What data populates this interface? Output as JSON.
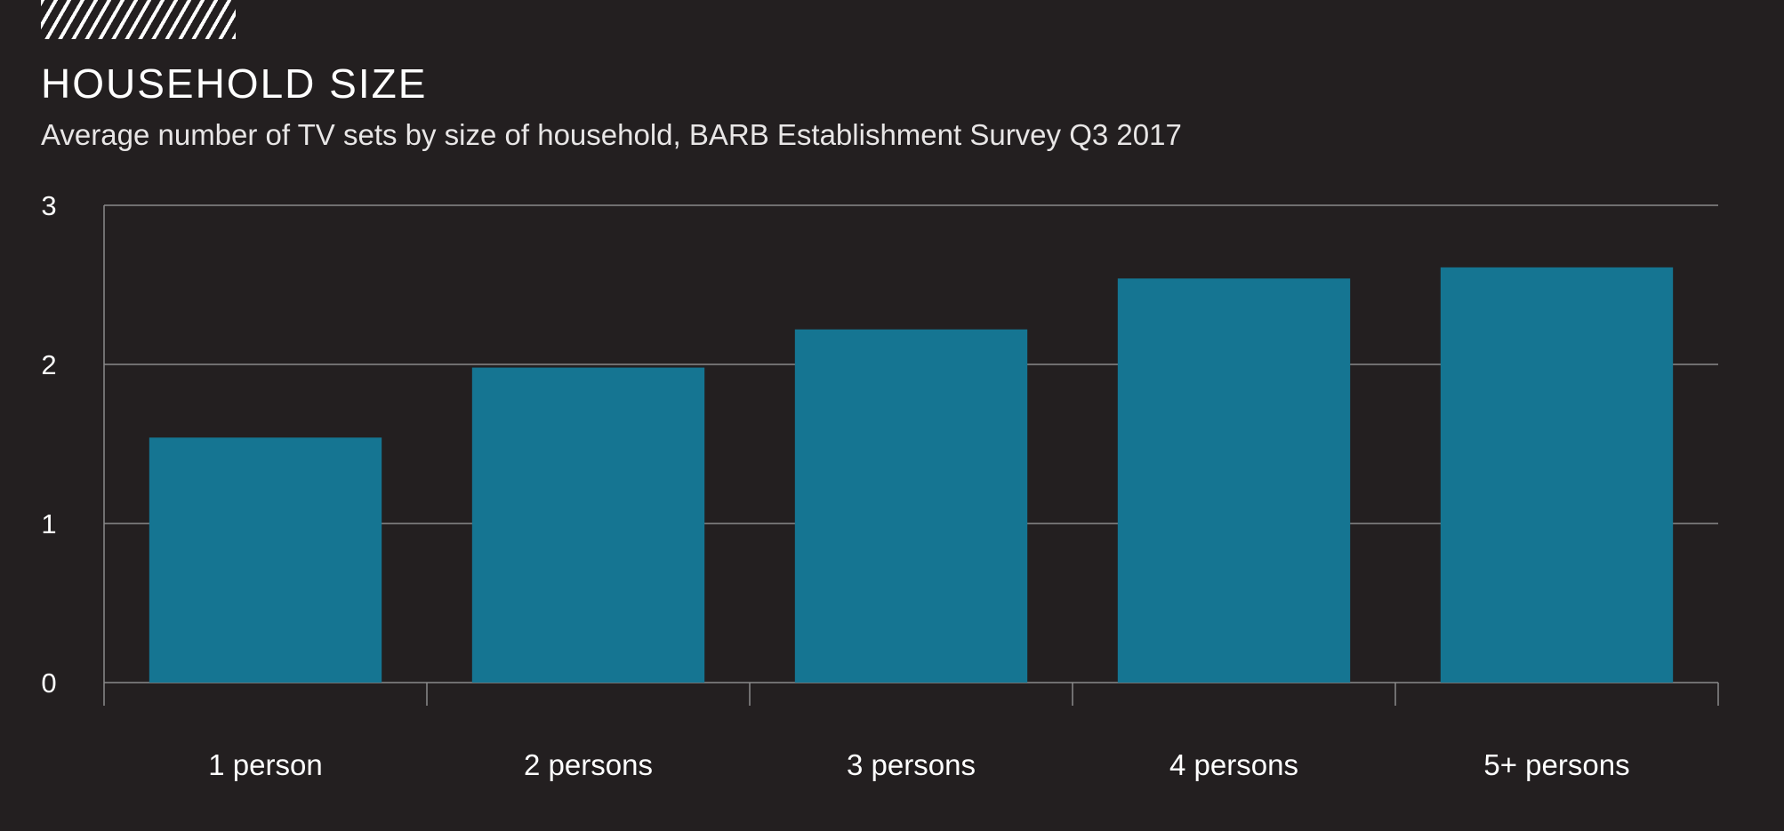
{
  "header": {
    "title": "HOUSEHOLD SIZE",
    "subtitle": "Average number of TV sets by size of household, BARB Establishment Survey Q3 2017"
  },
  "colors": {
    "background": "#231f20",
    "bar": "#157592",
    "grid": "#8a8a8a",
    "text": "#ffffff"
  },
  "chart_data": {
    "type": "bar",
    "title": "HOUSEHOLD SIZE",
    "subtitle": "Average number of TV sets by size of household, BARB Establishment Survey Q3 2017",
    "categories": [
      "1 person",
      "2 persons",
      "3 persons",
      "4 persons",
      "5+ persons"
    ],
    "values": [
      1.54,
      1.98,
      2.22,
      2.54,
      2.61
    ],
    "ylim": [
      0,
      3
    ],
    "yticks": [
      0,
      1,
      2,
      3
    ],
    "grid": true,
    "legend": "none"
  }
}
